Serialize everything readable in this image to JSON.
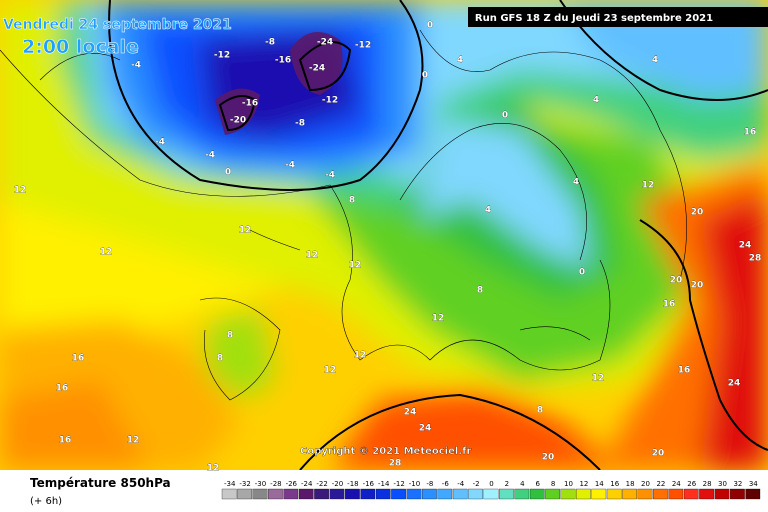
{
  "header": {
    "date": "Vendredi 24 septembre 2021",
    "time": "2:00 locale",
    "run": "Run GFS 18 Z du Jeudi 23 septembre 2021"
  },
  "copyright": "Copyright © 2021 Meteociel.fr",
  "footer": {
    "title": "Température 850hPa",
    "step": "(+ 6h)"
  },
  "legend": {
    "ticks": [
      -34,
      -32,
      -30,
      -28,
      -26,
      -24,
      -22,
      -20,
      -18,
      -16,
      -14,
      -12,
      -10,
      -8,
      -6,
      -4,
      -2,
      0,
      2,
      4,
      6,
      8,
      10,
      12,
      14,
      16,
      18,
      20,
      22,
      24,
      26,
      28,
      30,
      32,
      34
    ],
    "colors": [
      "#c8c8c8",
      "#a8a8a8",
      "#888888",
      "#9a6a9a",
      "#7a3a8a",
      "#5a1a6a",
      "#3a1a7a",
      "#2a1a9a",
      "#1a10b0",
      "#1020c8",
      "#0a30e0",
      "#0850ff",
      "#1a70ff",
      "#2a90ff",
      "#40a8ff",
      "#60c0ff",
      "#80d8ff",
      "#a0f0ff",
      "#60e0c0",
      "#40d080",
      "#30c040",
      "#60d020",
      "#a0e010",
      "#e0f000",
      "#fff000",
      "#ffd000",
      "#ffb000",
      "#ff9000",
      "#ff7000",
      "#ff5000",
      "#ff3020",
      "#e01010",
      "#c00000",
      "#900000",
      "#600000"
    ]
  },
  "contour_labels": [
    -12,
    -8,
    -16,
    -24,
    -24,
    -12,
    -4,
    -12,
    -16,
    -20,
    -8,
    -4,
    -4,
    -4,
    0,
    -4,
    8,
    0,
    0,
    4,
    0,
    4,
    4,
    12,
    16,
    20,
    24,
    28,
    20,
    20,
    16,
    12,
    12,
    12,
    12,
    12,
    8,
    8,
    16,
    16,
    16,
    12,
    12,
    24,
    24,
    28,
    20,
    20,
    24,
    4,
    4,
    0,
    8,
    12,
    12,
    12,
    8,
    12,
    16
  ]
}
